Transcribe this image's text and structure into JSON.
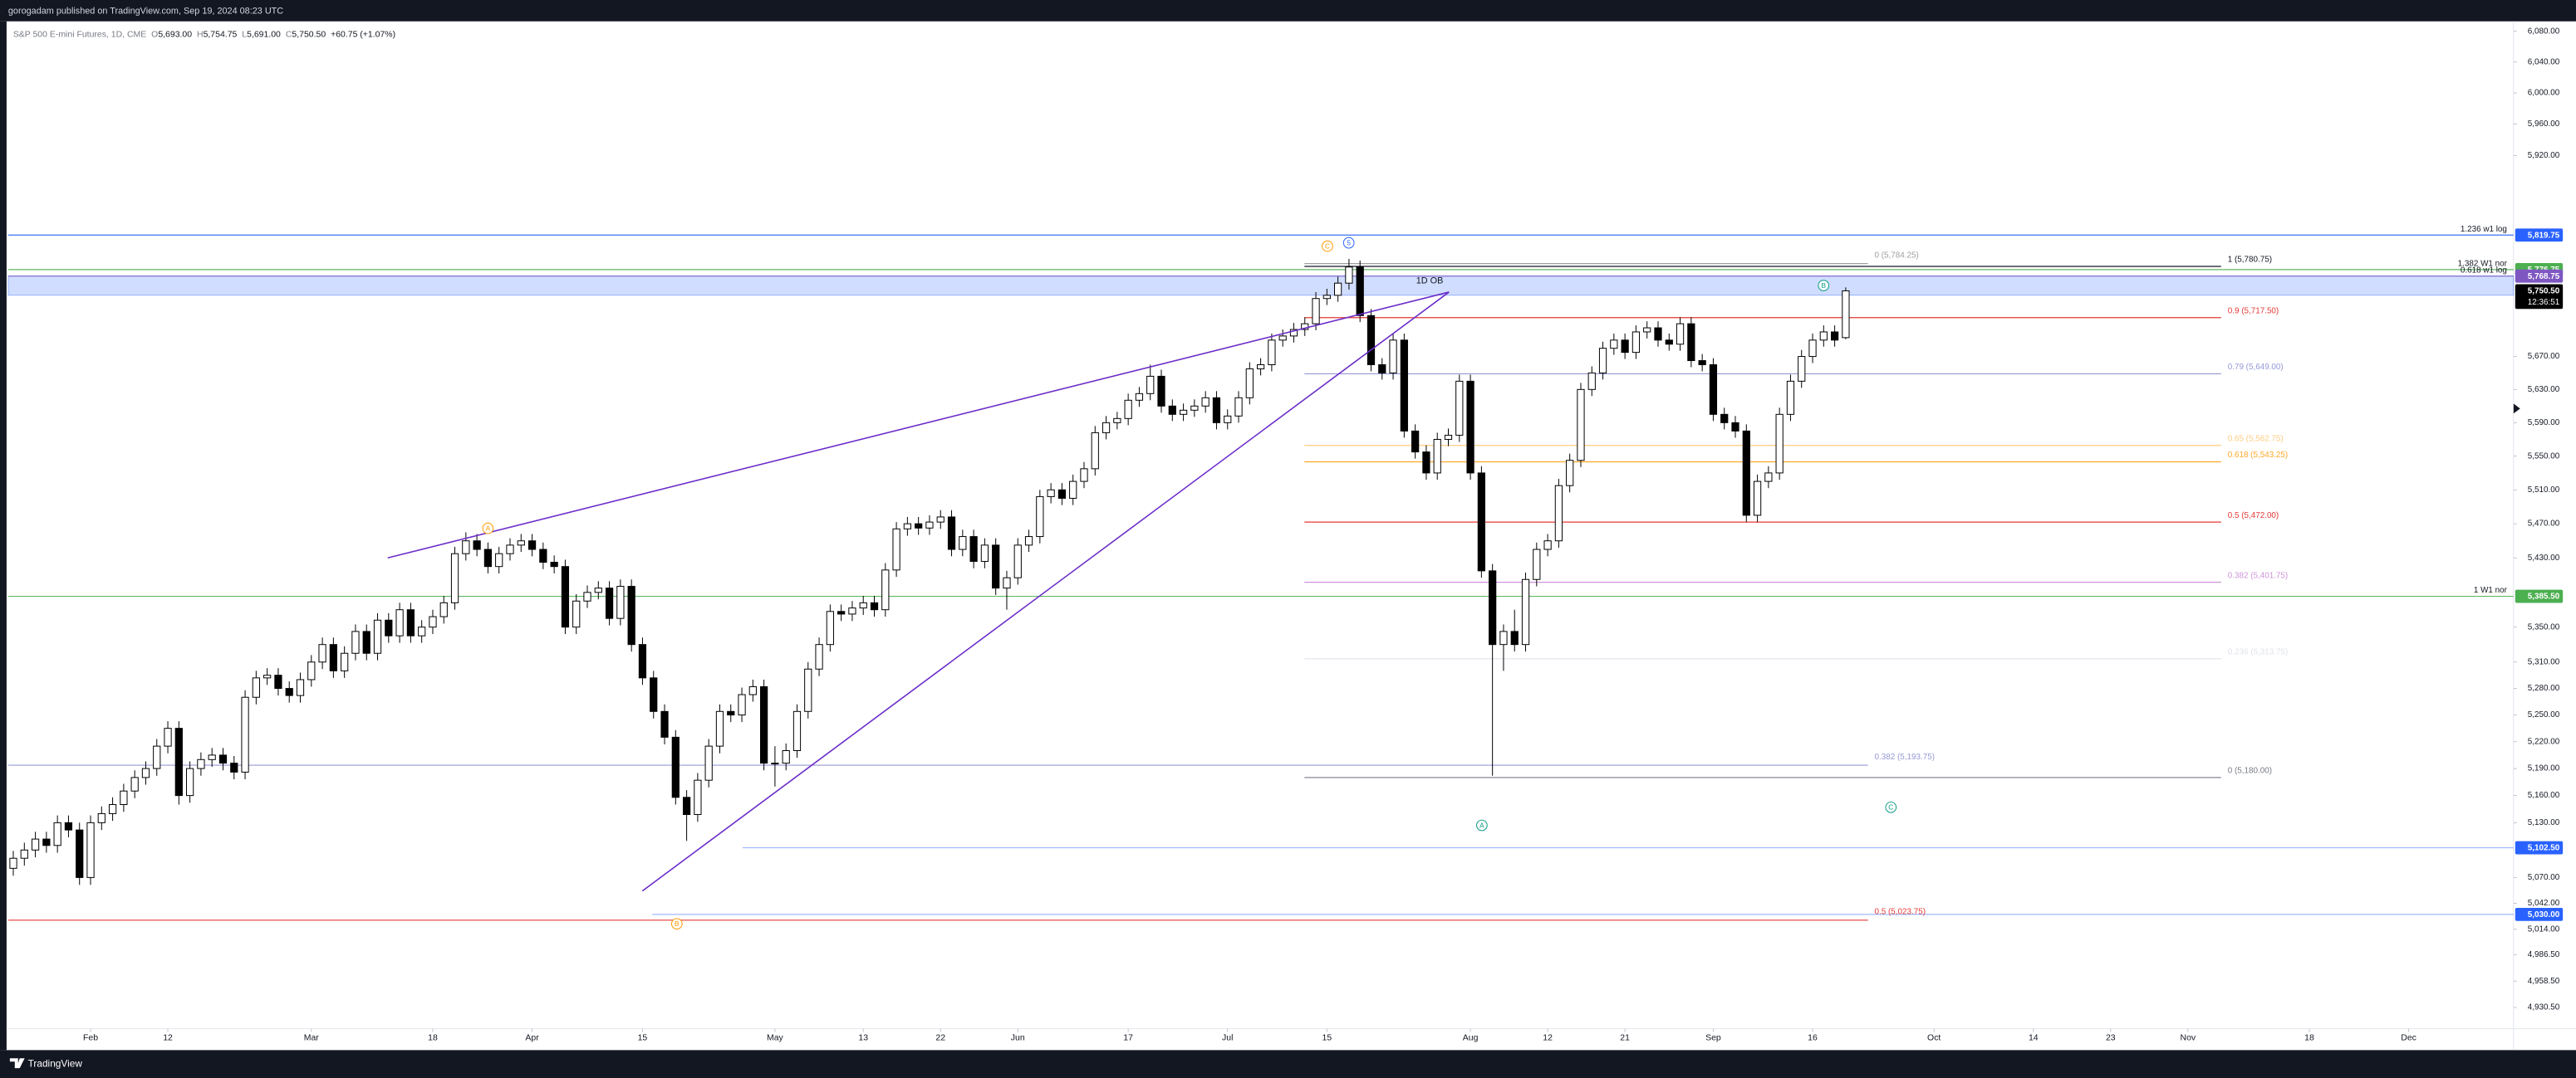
{
  "published": "gorogadam published on TradingView.com, Sep 19, 2024 08:23 UTC",
  "footer": "TradingView",
  "chart_data": {
    "type": "candlestick",
    "title": "S&P 500 E-mini Futures, 1D, CME",
    "header": {
      "o": "O",
      "open": "5,693.00",
      "h": "H",
      "high": "5,754.75",
      "l": "L",
      "low": "5,691.00",
      "c": "C",
      "close": "5,750.50",
      "change": "+60.75 (+1.07%)"
    },
    "log_scale": true,
    "ylim": [
      4908,
      6093
    ],
    "xlim": [
      -0.46,
      226.5
    ],
    "yticks": [
      {
        "value": 6080,
        "label": "6,080.00"
      },
      {
        "value": 6040,
        "label": "6,040.00"
      },
      {
        "value": 6000,
        "label": "6,000.00"
      },
      {
        "value": 5960,
        "label": "5,960.00"
      },
      {
        "value": 5920,
        "label": "5,920.00"
      },
      {
        "value": 5670,
        "label": "5,670.00"
      },
      {
        "value": 5630,
        "label": "5,630.00"
      },
      {
        "value": 5590,
        "label": "5,590.00"
      },
      {
        "value": 5550,
        "label": "5,550.00"
      },
      {
        "value": 5510,
        "label": "5,510.00"
      },
      {
        "value": 5470,
        "label": "5,470.00"
      },
      {
        "value": 5430,
        "label": "5,430.00"
      },
      {
        "value": 5350,
        "label": "5,350.00"
      },
      {
        "value": 5310,
        "label": "5,310.00"
      },
      {
        "value": 5280,
        "label": "5,280.00"
      },
      {
        "value": 5250,
        "label": "5,250.00"
      },
      {
        "value": 5220,
        "label": "5,220.00"
      },
      {
        "value": 5190,
        "label": "5,190.00"
      },
      {
        "value": 5160,
        "label": "5,160.00"
      },
      {
        "value": 5130,
        "label": "5,130.00"
      },
      {
        "value": 5070,
        "label": "5,070.00"
      },
      {
        "value": 5042,
        "label": "5,042.00"
      },
      {
        "value": 5014,
        "label": "5,014.00"
      },
      {
        "value": 4986.5,
        "label": "4,986.50"
      },
      {
        "value": 4958.5,
        "label": "4,958.50"
      },
      {
        "value": 4930.5,
        "label": "4,930.50"
      }
    ],
    "xticks": [
      {
        "value": 7,
        "label": "Feb"
      },
      {
        "value": 14,
        "label": "12"
      },
      {
        "value": 27,
        "label": "Mar"
      },
      {
        "value": 38,
        "label": "18"
      },
      {
        "value": 47,
        "label": "Apr"
      },
      {
        "value": 57,
        "label": "15"
      },
      {
        "value": 69,
        "label": "May"
      },
      {
        "value": 77,
        "label": "13"
      },
      {
        "value": 84,
        "label": "22"
      },
      {
        "value": 91,
        "label": "Jun"
      },
      {
        "value": 101,
        "label": "17"
      },
      {
        "value": 110,
        "label": "Jul"
      },
      {
        "value": 119,
        "label": "15"
      },
      {
        "value": 132,
        "label": "Aug"
      },
      {
        "value": 139,
        "label": "12"
      },
      {
        "value": 146,
        "label": "21"
      },
      {
        "value": 154,
        "label": "Sep"
      },
      {
        "value": 163,
        "label": "16"
      },
      {
        "value": 174,
        "label": "Oct"
      },
      {
        "value": 183,
        "label": "14"
      },
      {
        "value": 190,
        "label": "23"
      },
      {
        "value": 197,
        "label": "Nov"
      },
      {
        "value": 208,
        "label": "18"
      },
      {
        "value": 217,
        "label": "Dec"
      }
    ],
    "up_color": "#ffffff",
    "down_color": "#000000",
    "ohlc": [
      [
        5080,
        5099,
        5072,
        5091
      ],
      [
        5091,
        5108,
        5083,
        5100
      ],
      [
        5100,
        5120,
        5092,
        5112
      ],
      [
        5112,
        5120,
        5097,
        5105
      ],
      [
        5105,
        5138,
        5097,
        5130
      ],
      [
        5130,
        5138,
        5114,
        5122
      ],
      [
        5122,
        5130,
        5062,
        5070
      ],
      [
        5070,
        5138,
        5062,
        5130
      ],
      [
        5130,
        5148,
        5122,
        5140
      ],
      [
        5140,
        5158,
        5132,
        5150
      ],
      [
        5150,
        5173,
        5142,
        5165
      ],
      [
        5165,
        5188,
        5157,
        5180
      ],
      [
        5180,
        5198,
        5172,
        5190
      ],
      [
        5190,
        5223,
        5182,
        5215
      ],
      [
        5215,
        5243,
        5207,
        5235
      ],
      [
        5235,
        5243,
        5150,
        5160
      ],
      [
        5160,
        5198,
        5152,
        5190
      ],
      [
        5190,
        5208,
        5182,
        5200
      ],
      [
        5200,
        5213,
        5192,
        5205
      ],
      [
        5205,
        5213,
        5188,
        5196
      ],
      [
        5196,
        5204,
        5178,
        5186
      ],
      [
        5186,
        5278,
        5178,
        5270
      ],
      [
        5270,
        5300,
        5262,
        5292
      ],
      [
        5292,
        5303,
        5284,
        5295
      ],
      [
        5295,
        5303,
        5272,
        5280
      ],
      [
        5280,
        5288,
        5264,
        5272
      ],
      [
        5272,
        5298,
        5264,
        5290
      ],
      [
        5290,
        5318,
        5282,
        5310
      ],
      [
        5310,
        5338,
        5302,
        5330
      ],
      [
        5330,
        5338,
        5292,
        5300
      ],
      [
        5300,
        5328,
        5292,
        5320
      ],
      [
        5320,
        5353,
        5312,
        5345
      ],
      [
        5345,
        5353,
        5312,
        5320
      ],
      [
        5320,
        5366,
        5312,
        5358
      ],
      [
        5358,
        5366,
        5332,
        5340
      ],
      [
        5340,
        5378,
        5332,
        5370
      ],
      [
        5370,
        5378,
        5332,
        5340
      ],
      [
        5340,
        5358,
        5332,
        5350
      ],
      [
        5350,
        5370,
        5342,
        5362
      ],
      [
        5362,
        5386,
        5354,
        5378
      ],
      [
        5378,
        5443,
        5370,
        5435
      ],
      [
        5435,
        5460,
        5427,
        5450
      ],
      [
        5450,
        5458,
        5432,
        5440
      ],
      [
        5440,
        5448,
        5412,
        5420
      ],
      [
        5420,
        5443,
        5412,
        5435
      ],
      [
        5435,
        5453,
        5427,
        5445
      ],
      [
        5445,
        5458,
        5437,
        5450
      ],
      [
        5450,
        5458,
        5432,
        5440
      ],
      [
        5440,
        5448,
        5417,
        5425
      ],
      [
        5425,
        5433,
        5412,
        5420
      ],
      [
        5420,
        5428,
        5342,
        5350
      ],
      [
        5350,
        5388,
        5342,
        5380
      ],
      [
        5380,
        5398,
        5372,
        5390
      ],
      [
        5390,
        5403,
        5382,
        5395
      ],
      [
        5395,
        5403,
        5352,
        5360
      ],
      [
        5360,
        5405,
        5352,
        5397
      ],
      [
        5397,
        5405,
        5322,
        5330
      ],
      [
        5330,
        5338,
        5284,
        5292
      ],
      [
        5292,
        5300,
        5246,
        5254
      ],
      [
        5254,
        5262,
        5217,
        5225
      ],
      [
        5225,
        5233,
        5150,
        5158
      ],
      [
        5158,
        5166,
        5110,
        5139
      ],
      [
        5139,
        5185,
        5131,
        5177
      ],
      [
        5177,
        5223,
        5169,
        5215
      ],
      [
        5215,
        5262,
        5207,
        5254
      ],
      [
        5254,
        5262,
        5242,
        5250
      ],
      [
        5250,
        5281,
        5242,
        5273
      ],
      [
        5273,
        5290,
        5265,
        5282
      ],
      [
        5282,
        5290,
        5188,
        5196
      ],
      [
        5196,
        5215,
        5170,
        5196
      ],
      [
        5196,
        5218,
        5188,
        5210
      ],
      [
        5210,
        5262,
        5202,
        5254
      ],
      [
        5254,
        5310,
        5246,
        5302
      ],
      [
        5302,
        5338,
        5294,
        5330
      ],
      [
        5330,
        5376,
        5322,
        5368
      ],
      [
        5368,
        5376,
        5357,
        5365
      ],
      [
        5365,
        5380,
        5357,
        5372
      ],
      [
        5372,
        5386,
        5364,
        5378
      ],
      [
        5378,
        5386,
        5362,
        5370
      ],
      [
        5370,
        5424,
        5362,
        5416
      ],
      [
        5416,
        5472,
        5408,
        5464
      ],
      [
        5464,
        5478,
        5456,
        5470
      ],
      [
        5470,
        5478,
        5457,
        5465
      ],
      [
        5465,
        5480,
        5457,
        5472
      ],
      [
        5472,
        5486,
        5464,
        5478
      ],
      [
        5478,
        5486,
        5432,
        5440
      ],
      [
        5440,
        5463,
        5432,
        5455
      ],
      [
        5455,
        5463,
        5418,
        5426
      ],
      [
        5426,
        5453,
        5418,
        5445
      ],
      [
        5445,
        5453,
        5387,
        5395
      ],
      [
        5395,
        5415,
        5370,
        5407
      ],
      [
        5407,
        5453,
        5399,
        5445
      ],
      [
        5445,
        5463,
        5437,
        5455
      ],
      [
        5455,
        5510,
        5447,
        5502
      ],
      [
        5502,
        5518,
        5494,
        5510
      ],
      [
        5510,
        5518,
        5492,
        5500
      ],
      [
        5500,
        5528,
        5492,
        5520
      ],
      [
        5520,
        5543,
        5512,
        5535
      ],
      [
        5535,
        5586,
        5527,
        5578
      ],
      [
        5578,
        5598,
        5570,
        5590
      ],
      [
        5590,
        5603,
        5582,
        5595
      ],
      [
        5595,
        5625,
        5587,
        5617
      ],
      [
        5617,
        5633,
        5609,
        5625
      ],
      [
        5625,
        5660,
        5617,
        5646
      ],
      [
        5646,
        5654,
        5602,
        5610
      ],
      [
        5610,
        5618,
        5592,
        5600
      ],
      [
        5600,
        5613,
        5592,
        5605
      ],
      [
        5605,
        5618,
        5597,
        5610
      ],
      [
        5610,
        5628,
        5602,
        5620
      ],
      [
        5620,
        5628,
        5582,
        5590
      ],
      [
        5590,
        5606,
        5582,
        5598
      ],
      [
        5598,
        5628,
        5590,
        5620
      ],
      [
        5620,
        5663,
        5612,
        5655
      ],
      [
        5655,
        5668,
        5647,
        5660
      ],
      [
        5660,
        5698,
        5652,
        5690
      ],
      [
        5690,
        5703,
        5682,
        5695
      ],
      [
        5695,
        5711,
        5687,
        5703
      ],
      [
        5703,
        5718,
        5695,
        5710
      ],
      [
        5710,
        5749,
        5702,
        5741
      ],
      [
        5741,
        5753,
        5733,
        5745
      ],
      [
        5745,
        5768,
        5737,
        5760
      ],
      [
        5760,
        5790,
        5752,
        5780
      ],
      [
        5780,
        5788,
        5712,
        5720
      ],
      [
        5720,
        5728,
        5652,
        5660
      ],
      [
        5660,
        5668,
        5642,
        5650
      ],
      [
        5650,
        5698,
        5642,
        5690
      ],
      [
        5690,
        5698,
        5572,
        5580
      ],
      [
        5580,
        5588,
        5547,
        5555
      ],
      [
        5555,
        5563,
        5522,
        5530
      ],
      [
        5530,
        5578,
        5522,
        5570
      ],
      [
        5570,
        5583,
        5562,
        5575
      ],
      [
        5575,
        5648,
        5567,
        5640
      ],
      [
        5640,
        5648,
        5522,
        5530
      ],
      [
        5530,
        5538,
        5407,
        5415
      ],
      [
        5415,
        5423,
        5182,
        5330
      ],
      [
        5330,
        5353,
        5300,
        5345
      ],
      [
        5345,
        5370,
        5322,
        5330
      ],
      [
        5330,
        5413,
        5322,
        5405
      ],
      [
        5405,
        5448,
        5397,
        5440
      ],
      [
        5440,
        5458,
        5432,
        5450
      ],
      [
        5450,
        5523,
        5442,
        5515
      ],
      [
        5515,
        5553,
        5507,
        5545
      ],
      [
        5545,
        5638,
        5537,
        5630
      ],
      [
        5630,
        5658,
        5622,
        5650
      ],
      [
        5650,
        5688,
        5642,
        5680
      ],
      [
        5680,
        5698,
        5672,
        5690
      ],
      [
        5690,
        5698,
        5667,
        5675
      ],
      [
        5675,
        5708,
        5667,
        5700
      ],
      [
        5700,
        5713,
        5692,
        5705
      ],
      [
        5705,
        5713,
        5682,
        5690
      ],
      [
        5690,
        5698,
        5677,
        5685
      ],
      [
        5685,
        5718,
        5677,
        5710
      ],
      [
        5710,
        5718,
        5657,
        5665
      ],
      [
        5665,
        5673,
        5652,
        5660
      ],
      [
        5660,
        5668,
        5592,
        5600
      ],
      [
        5600,
        5608,
        5582,
        5590
      ],
      [
        5590,
        5598,
        5572,
        5580
      ],
      [
        5580,
        5588,
        5472,
        5480
      ],
      [
        5480,
        5528,
        5472,
        5520
      ],
      [
        5520,
        5538,
        5512,
        5530
      ],
      [
        5530,
        5608,
        5522,
        5600
      ],
      [
        5600,
        5648,
        5592,
        5640
      ],
      [
        5640,
        5678,
        5632,
        5670
      ],
      [
        5670,
        5698,
        5662,
        5690
      ],
      [
        5690,
        5708,
        5682,
        5700
      ],
      [
        5700,
        5708,
        5682,
        5690
      ],
      [
        5693,
        5754.75,
        5691,
        5750.5
      ]
    ],
    "levels": [
      {
        "value": 5819.75,
        "label": "5,819.75",
        "note": "1.236 w1 log",
        "color": "#2962ff"
      },
      {
        "value": 5776.75,
        "label": "5,776.75",
        "note": "1.382 W1 nor",
        "color": "#4caf50"
      },
      {
        "value": 5768.75,
        "label": "5,768.75",
        "note": "0.618 w1 log",
        "color": "#7e57c2"
      },
      {
        "value": 5385.5,
        "label": "5,385.50",
        "note": "1 W1 nor",
        "color": "#4caf50"
      },
      {
        "value": 5102.5,
        "label": "5,102.50",
        "color": "#2962ff"
      },
      {
        "value": 5030,
        "label": "5,030.00",
        "color": "#2962ff"
      }
    ],
    "last_price": {
      "value": 5750.5,
      "label": "5,750.50",
      "countdown": "12:36:51"
    },
    "zone": {
      "label": "1D OB",
      "top": 5768.75,
      "bottom": 5745
    },
    "fib": [
      {
        "value": 5780.75,
        "label": "1 (5,780.75)",
        "color": "#131722"
      },
      {
        "value": 5717.5,
        "label": "0.9 (5,717.50)",
        "color": "#e53935"
      },
      {
        "value": 5649,
        "label": "0.79 (5,649.00)",
        "color": "#9598d6"
      },
      {
        "value": 5562.75,
        "label": "0.65 (5,562.75)",
        "color": "#ffcc80"
      },
      {
        "value": 5543.25,
        "label": "0.618 (5,543.25)",
        "color": "#ffa726"
      },
      {
        "value": 5472,
        "label": "0.5 (5,472.00)",
        "color": "#e53935"
      },
      {
        "value": 5401.75,
        "label": "0.382 (5,401.75)",
        "color": "#ce93d8"
      },
      {
        "value": 5313.75,
        "label": "0.236 (5,313.75)",
        "color": "#e0e3eb"
      },
      {
        "value": 5180,
        "label": "0 (5,180.00)",
        "color": "#787b86"
      }
    ],
    "fib_weekly": [
      {
        "value": 5784.25,
        "label": "0 (5,784.25)",
        "color": "#9e9e9e"
      },
      {
        "value": 5193.75,
        "label": "0.382 (5,193.75)",
        "color": "#9598d6"
      },
      {
        "value": 5023.75,
        "label": "0.5 (5,023.75)",
        "color": "#e53935"
      }
    ],
    "waves": [
      "A",
      "B",
      "C",
      "5",
      "A",
      "B",
      "C"
    ]
  }
}
